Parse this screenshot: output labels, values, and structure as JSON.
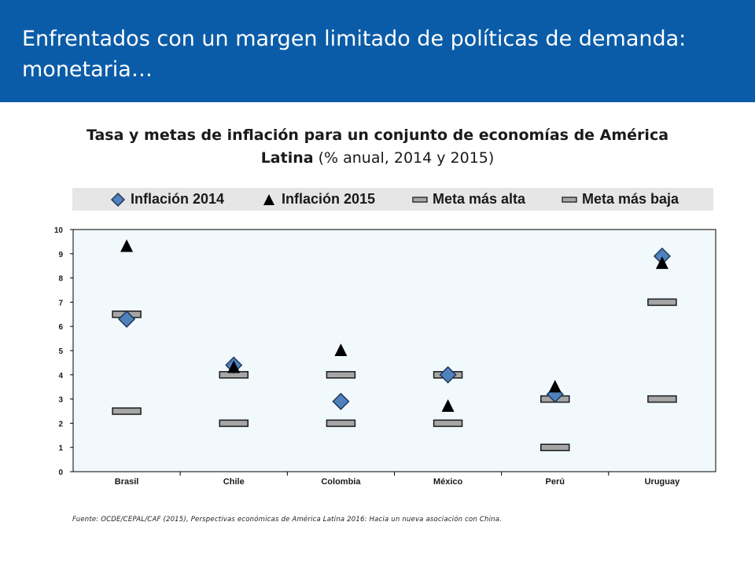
{
  "slide": {
    "title": "Enfrentados con un margen limitado de políticas de demanda: monetaria…"
  },
  "chart_title": {
    "bold": "Tasa y metas de inflación para un conjunto de economías de América Latina",
    "normal": " (% anual, 2014 y 2015)"
  },
  "source": "Fuente: OCDE/CEPAL/CAF (2015), Perspectivas económicas de América Latina 2016: Hacia un nueva asociación con China.",
  "colors": {
    "header": "#0b5ca8",
    "diamond": "#4f81bd",
    "bar": "#a6a6a6",
    "plot_bg": "#f2f9fd"
  },
  "chart_data": {
    "type": "scatter",
    "categories": [
      "Brasil",
      "Chile",
      "Colombia",
      "México",
      "Perú",
      "Uruguay"
    ],
    "ylim": [
      0,
      10
    ],
    "yticks": [
      0,
      1,
      2,
      3,
      4,
      5,
      6,
      7,
      8,
      9,
      10
    ],
    "grid": false,
    "legend_position": "top",
    "series": [
      {
        "name": "Inflación 2014",
        "marker": "diamond",
        "values": [
          6.3,
          4.4,
          2.9,
          4.0,
          3.2,
          8.9
        ]
      },
      {
        "name": "Inflación 2015",
        "marker": "triangle",
        "values": [
          9.3,
          4.3,
          5.0,
          2.7,
          3.5,
          8.6
        ]
      },
      {
        "name": "Meta más alta",
        "marker": "dash",
        "values": [
          6.5,
          4.0,
          4.0,
          4.0,
          3.0,
          7.0
        ]
      },
      {
        "name": "Meta más baja",
        "marker": "dash",
        "values": [
          2.5,
          2.0,
          2.0,
          2.0,
          1.0,
          3.0
        ]
      }
    ]
  }
}
